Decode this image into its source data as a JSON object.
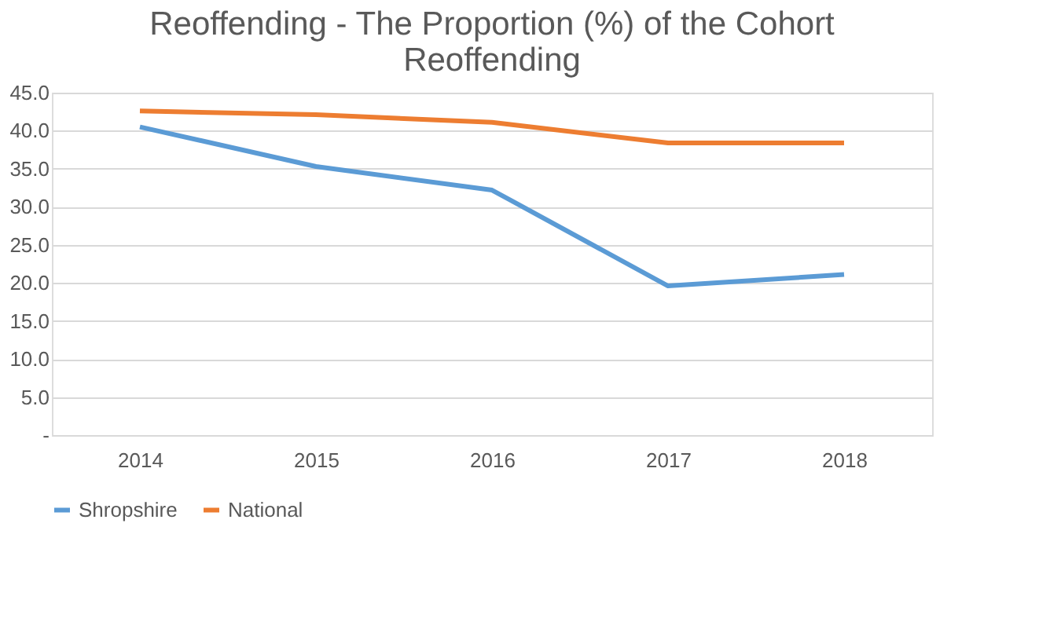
{
  "chart_data": {
    "type": "line",
    "title": "Reoffending - The Proportion (%) of the Cohort Reoffending",
    "categories": [
      "2014",
      "2015",
      "2016",
      "2017",
      "2018"
    ],
    "series": [
      {
        "name": "Shropshire",
        "color": "#5b9bd5",
        "values": [
          40.5,
          35.3,
          32.2,
          19.6,
          21.1
        ]
      },
      {
        "name": "National",
        "color": "#ed7d31",
        "values": [
          42.6,
          42.1,
          41.1,
          38.4,
          38.4
        ]
      }
    ],
    "ylim": [
      0,
      45
    ],
    "yticks": [
      {
        "value": 0,
        "label": "-"
      },
      {
        "value": 5,
        "label": "5.0"
      },
      {
        "value": 10,
        "label": "10.0"
      },
      {
        "value": 15,
        "label": "15.0"
      },
      {
        "value": 20,
        "label": "20.0"
      },
      {
        "value": 25,
        "label": "25.0"
      },
      {
        "value": 30,
        "label": "30.0"
      },
      {
        "value": 35,
        "label": "35.0"
      },
      {
        "value": 40,
        "label": "40.0"
      },
      {
        "value": 45,
        "label": "45.0"
      }
    ],
    "grid": "y",
    "legend": "bottom",
    "marker": "none",
    "line_style": "solid"
  }
}
